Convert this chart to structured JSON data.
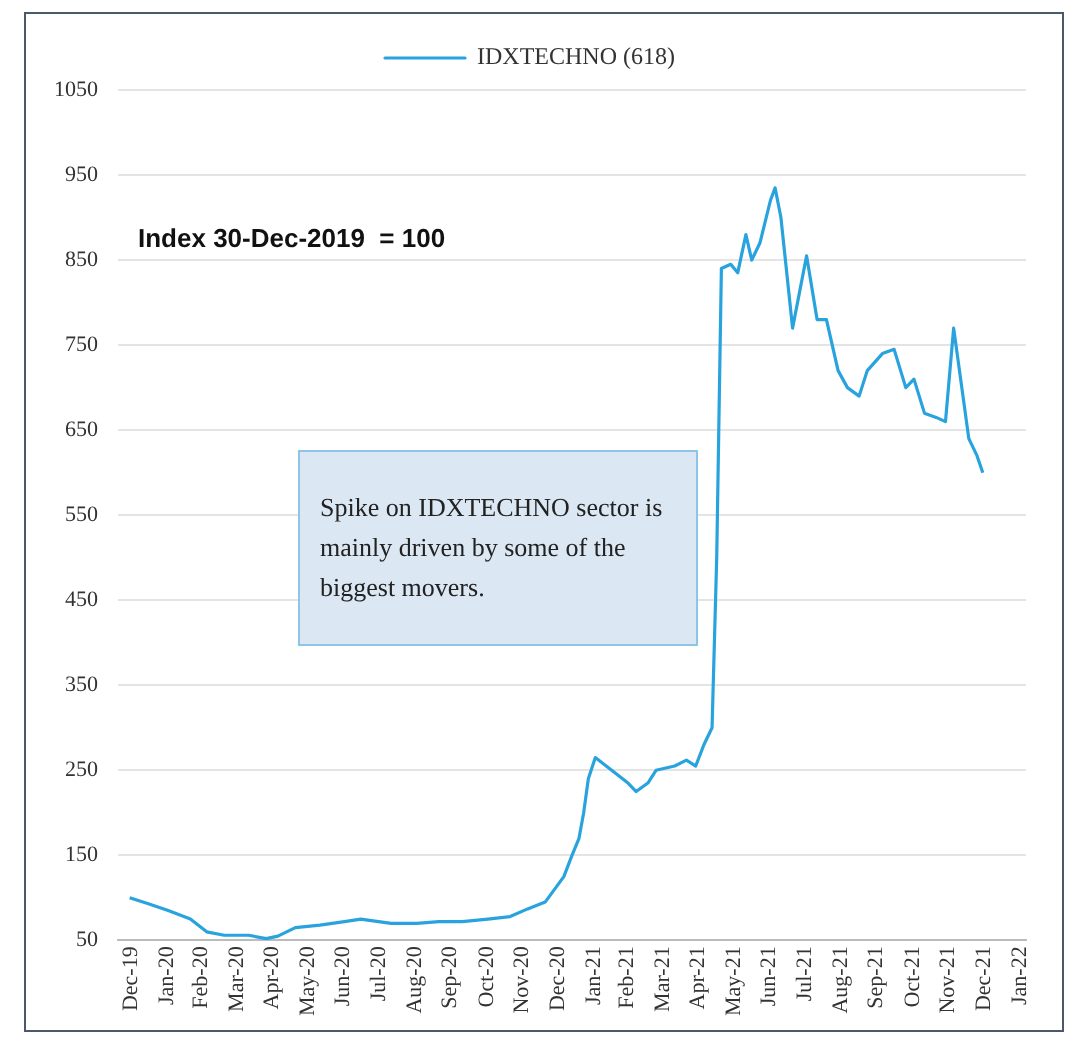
{
  "chart_data": {
    "type": "line",
    "annotations": [
      "Index 30-Dec-2019  = 100",
      "Spike on IDXTECHNO sector is mainly driven by some of the biggest movers."
    ],
    "legend": "top",
    "grid": "y",
    "marker": "none",
    "line_style": "solid",
    "ylim": [
      50,
      1050
    ],
    "yticks": [
      50,
      150,
      250,
      350,
      450,
      550,
      650,
      750,
      850,
      950,
      1050
    ],
    "xlim": [
      "2019-12-20",
      "2022-02-05"
    ],
    "xticks": [
      {
        "value": "2019-12-31",
        "label": "Dec-19"
      },
      {
        "value": "2020-01-31",
        "label": "Jan-20"
      },
      {
        "value": "2020-02-29",
        "label": "Feb-20"
      },
      {
        "value": "2020-03-31",
        "label": "Mar-20"
      },
      {
        "value": "2020-04-30",
        "label": "Apr-20"
      },
      {
        "value": "2020-05-31",
        "label": "May-20"
      },
      {
        "value": "2020-06-30",
        "label": "Jun-20"
      },
      {
        "value": "2020-07-31",
        "label": "Jul-20"
      },
      {
        "value": "2020-08-31",
        "label": "Aug-20"
      },
      {
        "value": "2020-09-30",
        "label": "Sep-20"
      },
      {
        "value": "2020-10-31",
        "label": "Oct-20"
      },
      {
        "value": "2020-11-30",
        "label": "Nov-20"
      },
      {
        "value": "2020-12-31",
        "label": "Dec-20"
      },
      {
        "value": "2021-01-31",
        "label": "Jan-21"
      },
      {
        "value": "2021-02-28",
        "label": "Feb-21"
      },
      {
        "value": "2021-03-31",
        "label": "Mar-21"
      },
      {
        "value": "2021-04-30",
        "label": "Apr-21"
      },
      {
        "value": "2021-05-31",
        "label": "May-21"
      },
      {
        "value": "2021-06-30",
        "label": "Jun-21"
      },
      {
        "value": "2021-07-31",
        "label": "Jul-21"
      },
      {
        "value": "2021-08-31",
        "label": "Aug-21"
      },
      {
        "value": "2021-09-30",
        "label": "Sep-21"
      },
      {
        "value": "2021-10-31",
        "label": "Oct-21"
      },
      {
        "value": "2021-11-30",
        "label": "Nov-21"
      },
      {
        "value": "2021-12-31",
        "label": "Dec-21"
      },
      {
        "value": "2022-01-31",
        "label": "Jan-22"
      }
    ],
    "x": [
      "2019-12-30",
      "2020-01-15",
      "2020-02-01",
      "2020-02-20",
      "2020-03-05",
      "2020-03-20",
      "2020-04-10",
      "2020-04-25",
      "2020-05-05",
      "2020-05-20",
      "2020-06-10",
      "2020-07-01",
      "2020-07-15",
      "2020-08-10",
      "2020-09-01",
      "2020-09-20",
      "2020-10-10",
      "2020-11-01",
      "2020-11-20",
      "2020-12-05",
      "2020-12-20",
      "2021-01-05",
      "2021-01-12",
      "2021-01-18",
      "2021-01-22",
      "2021-01-26",
      "2021-02-01",
      "2021-02-15",
      "2021-03-01",
      "2021-03-08",
      "2021-03-18",
      "2021-03-25",
      "2021-04-10",
      "2021-04-20",
      "2021-04-28",
      "2021-05-05",
      "2021-05-12",
      "2021-05-16",
      "2021-05-20",
      "2021-05-28",
      "2021-06-03",
      "2021-06-10",
      "2021-06-15",
      "2021-06-22",
      "2021-07-01",
      "2021-07-05",
      "2021-07-10",
      "2021-07-20",
      "2021-08-01",
      "2021-08-10",
      "2021-08-18",
      "2021-08-28",
      "2021-09-05",
      "2021-09-15",
      "2021-09-22",
      "2021-10-05",
      "2021-10-15",
      "2021-10-25",
      "2021-11-01",
      "2021-11-10",
      "2021-11-20",
      "2021-11-28",
      "2021-12-05",
      "2021-12-12",
      "2021-12-18",
      "2021-12-25",
      "2021-12-30"
    ],
    "series": [
      {
        "name": "IDXTECHNO (618)",
        "color": "#29a3dd",
        "values": [
          100,
          93,
          85,
          75,
          60,
          56,
          56,
          52,
          55,
          65,
          68,
          72,
          75,
          70,
          70,
          72,
          72,
          75,
          78,
          87,
          95,
          125,
          150,
          170,
          200,
          240,
          265,
          250,
          235,
          225,
          235,
          250,
          255,
          262,
          255,
          280,
          300,
          500,
          840,
          845,
          835,
          880,
          850,
          870,
          920,
          935,
          900,
          770,
          855,
          780,
          780,
          720,
          700,
          690,
          720,
          740,
          745,
          700,
          710,
          670,
          665,
          660,
          770,
          700,
          640,
          620,
          600
        ]
      }
    ]
  }
}
